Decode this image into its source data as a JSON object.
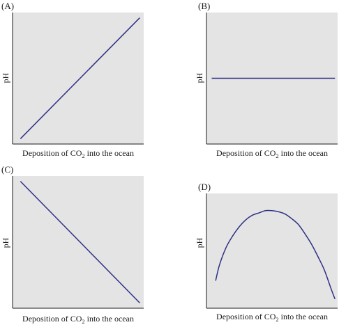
{
  "colors": {
    "plot_bg": "#e4e4e4",
    "axis": "#1a1a1a",
    "line": "#2e3184"
  },
  "chart_data": [
    {
      "type": "line",
      "panel": "(A)",
      "xlabel": {
        "pre": "Deposition of CO",
        "sub": "2",
        "post": " into the ocean"
      },
      "ylabel": "pH",
      "xlim": [
        0,
        1
      ],
      "ylim": [
        0,
        1
      ],
      "x_ticks": false,
      "y_ticks": false,
      "grid": false,
      "series": [
        {
          "x": [
            0.06,
            0.97
          ],
          "y": [
            0.04,
            0.96
          ]
        }
      ]
    },
    {
      "type": "line",
      "panel": "(B)",
      "xlabel": {
        "pre": "Deposition of CO",
        "sub": "2",
        "post": " into the ocean"
      },
      "ylabel": "pH",
      "xlim": [
        0,
        1
      ],
      "ylim": [
        0,
        1
      ],
      "x_ticks": false,
      "y_ticks": false,
      "grid": false,
      "series": [
        {
          "x": [
            0.04,
            0.98
          ],
          "y": [
            0.5,
            0.5
          ]
        }
      ]
    },
    {
      "type": "line",
      "panel": "(C)",
      "xlabel": {
        "pre": "Deposition of CO",
        "sub": "2",
        "post": " into the ocean"
      },
      "ylabel": "pH",
      "xlim": [
        0,
        1
      ],
      "ylim": [
        0,
        1
      ],
      "x_ticks": false,
      "y_ticks": false,
      "grid": false,
      "series": [
        {
          "x": [
            0.06,
            0.97
          ],
          "y": [
            0.96,
            0.04
          ]
        }
      ]
    },
    {
      "type": "line",
      "panel": "(D)",
      "xlabel": {
        "pre": "Deposition of CO",
        "sub": "2",
        "post": " into the ocean"
      },
      "ylabel": "pH",
      "xlim": [
        0,
        1
      ],
      "ylim": [
        0,
        1
      ],
      "x_ticks": false,
      "y_ticks": false,
      "grid": false,
      "series": [
        {
          "x": [
            0.07,
            0.1,
            0.15,
            0.2,
            0.25,
            0.3,
            0.35,
            0.4,
            0.45,
            0.5,
            0.55,
            0.6,
            0.65,
            0.7,
            0.75,
            0.8,
            0.85,
            0.9,
            0.95,
            0.98
          ],
          "y": [
            0.24,
            0.38,
            0.53,
            0.63,
            0.71,
            0.77,
            0.81,
            0.83,
            0.85,
            0.85,
            0.84,
            0.82,
            0.78,
            0.73,
            0.65,
            0.56,
            0.45,
            0.33,
            0.17,
            0.08
          ]
        }
      ]
    }
  ]
}
